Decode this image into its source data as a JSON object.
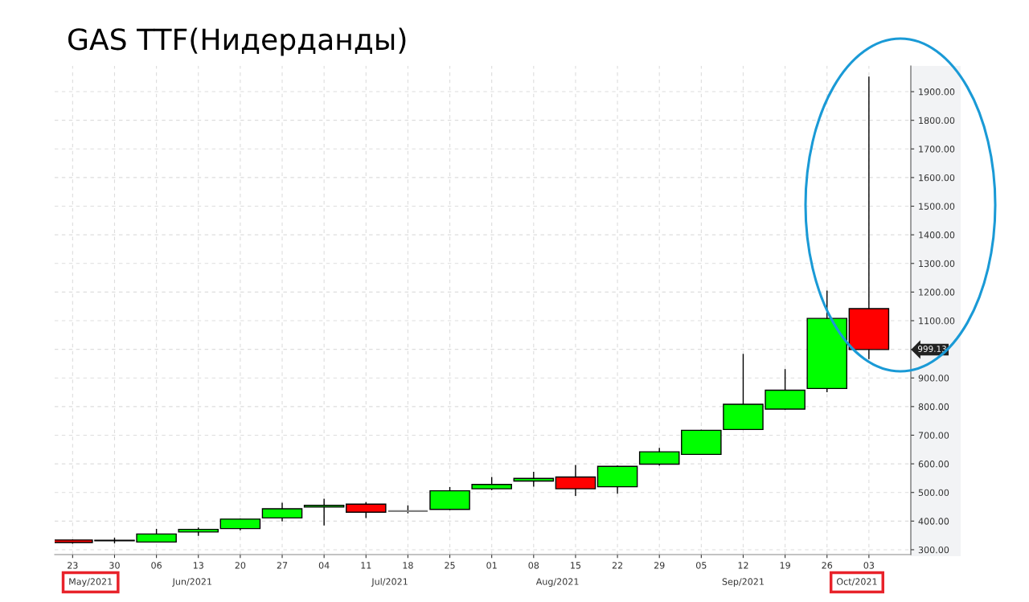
{
  "chart_data": {
    "type": "candlestick",
    "title": "GAS TTF(Нидерданды)",
    "x": [
      "2021-05-23",
      "2021-05-30",
      "2021-06-06",
      "2021-06-13",
      "2021-06-20",
      "2021-06-27",
      "2021-07-04",
      "2021-07-11",
      "2021-07-18",
      "2021-07-25",
      "2021-08-01",
      "2021-08-08",
      "2021-08-15",
      "2021-08-22",
      "2021-08-29",
      "2021-09-05",
      "2021-09-12",
      "2021-09-19",
      "2021-09-26",
      "2021-10-03"
    ],
    "ohlc": [
      [
        334,
        336,
        321,
        325
      ],
      [
        333,
        342,
        322,
        331
      ],
      [
        327,
        373,
        326,
        355
      ],
      [
        362,
        378,
        348,
        371
      ],
      [
        374,
        408,
        368,
        407
      ],
      [
        411,
        464,
        399,
        443
      ],
      [
        449,
        478,
        385,
        455
      ],
      [
        459,
        466,
        411,
        431
      ],
      [
        435,
        455,
        427,
        435
      ],
      [
        441,
        519,
        439,
        506
      ],
      [
        513,
        554,
        508,
        528
      ],
      [
        540,
        572,
        520,
        549
      ],
      [
        554,
        596,
        488,
        513
      ],
      [
        520,
        594,
        496,
        591
      ],
      [
        599,
        656,
        594,
        642
      ],
      [
        633,
        719,
        632,
        717
      ],
      [
        720,
        984,
        718,
        808
      ],
      [
        791,
        931,
        789,
        857
      ],
      [
        863,
        1205,
        850,
        1108
      ],
      [
        1142,
        1953,
        966,
        999.13
      ]
    ],
    "colors": [
      "#ff0000",
      "#8b0000",
      "#00ff00",
      "#00ff00",
      "#00ff00",
      "#00ff00",
      "#00ff00",
      "#ff0000",
      "#808080",
      "#00ff00",
      "#00ff00",
      "#00ff00",
      "#ff0000",
      "#00ff00",
      "#00ff00",
      "#00ff00",
      "#00ff00",
      "#00ff00",
      "#00ff00",
      "#ff0000"
    ],
    "xlim": [
      "2021-05-20",
      "2021-10-10"
    ],
    "xticks": [
      {
        "value": "2021-05-23",
        "label": "23"
      },
      {
        "value": "2021-05-30",
        "label": "30"
      },
      {
        "value": "2021-06-06",
        "label": "06"
      },
      {
        "value": "2021-06-13",
        "label": "13"
      },
      {
        "value": "2021-06-20",
        "label": "20"
      },
      {
        "value": "2021-06-27",
        "label": "27"
      },
      {
        "value": "2021-07-04",
        "label": "04"
      },
      {
        "value": "2021-07-11",
        "label": "11"
      },
      {
        "value": "2021-07-18",
        "label": "18"
      },
      {
        "value": "2021-07-25",
        "label": "25"
      },
      {
        "value": "2021-08-01",
        "label": "01"
      },
      {
        "value": "2021-08-08",
        "label": "08"
      },
      {
        "value": "2021-08-15",
        "label": "15"
      },
      {
        "value": "2021-08-22",
        "label": "22"
      },
      {
        "value": "2021-08-29",
        "label": "29"
      },
      {
        "value": "2021-09-05",
        "label": "05"
      },
      {
        "value": "2021-09-12",
        "label": "12"
      },
      {
        "value": "2021-09-19",
        "label": "19"
      },
      {
        "value": "2021-09-26",
        "label": "26"
      },
      {
        "value": "2021-10-03",
        "label": "03"
      }
    ],
    "x2lim": [
      "2021-05-20",
      "2021-10-10"
    ],
    "x2ticks": [
      {
        "value": "2021-05-26",
        "label": "May/2021"
      },
      {
        "value": "2021-06-12",
        "label": "Jun/2021"
      },
      {
        "value": "2021-07-15",
        "label": "Jul/2021"
      },
      {
        "value": "2021-08-12",
        "label": "Aug/2021"
      },
      {
        "value": "2021-09-12",
        "label": "Sep/2021"
      },
      {
        "value": "2021-10-01",
        "label": "Oct/2021"
      }
    ],
    "ylim": [
      283,
      1990
    ],
    "yticks": [
      {
        "value": 300,
        "label": "300.00"
      },
      {
        "value": 400,
        "label": "400.00"
      },
      {
        "value": 500,
        "label": "500.00"
      },
      {
        "value": 600,
        "label": "600.00"
      },
      {
        "value": 700,
        "label": "700.00"
      },
      {
        "value": 800,
        "label": "800.00"
      },
      {
        "value": 900,
        "label": "900.00"
      },
      {
        "value": 1000,
        "label": null
      },
      {
        "value": 1100,
        "label": "1100.00"
      },
      {
        "value": 1200,
        "label": "1200.00"
      },
      {
        "value": 1300,
        "label": "1300.00"
      },
      {
        "value": 1400,
        "label": "1400.00"
      },
      {
        "value": 1500,
        "label": "1500.00"
      },
      {
        "value": 1600,
        "label": "1600.00"
      },
      {
        "value": 1700,
        "label": "1700.00"
      },
      {
        "value": 1800,
        "label": "1800.00"
      },
      {
        "value": 1900,
        "label": "1900.00"
      }
    ],
    "annotations": [
      "999.13"
    ],
    "grid": true
  }
}
